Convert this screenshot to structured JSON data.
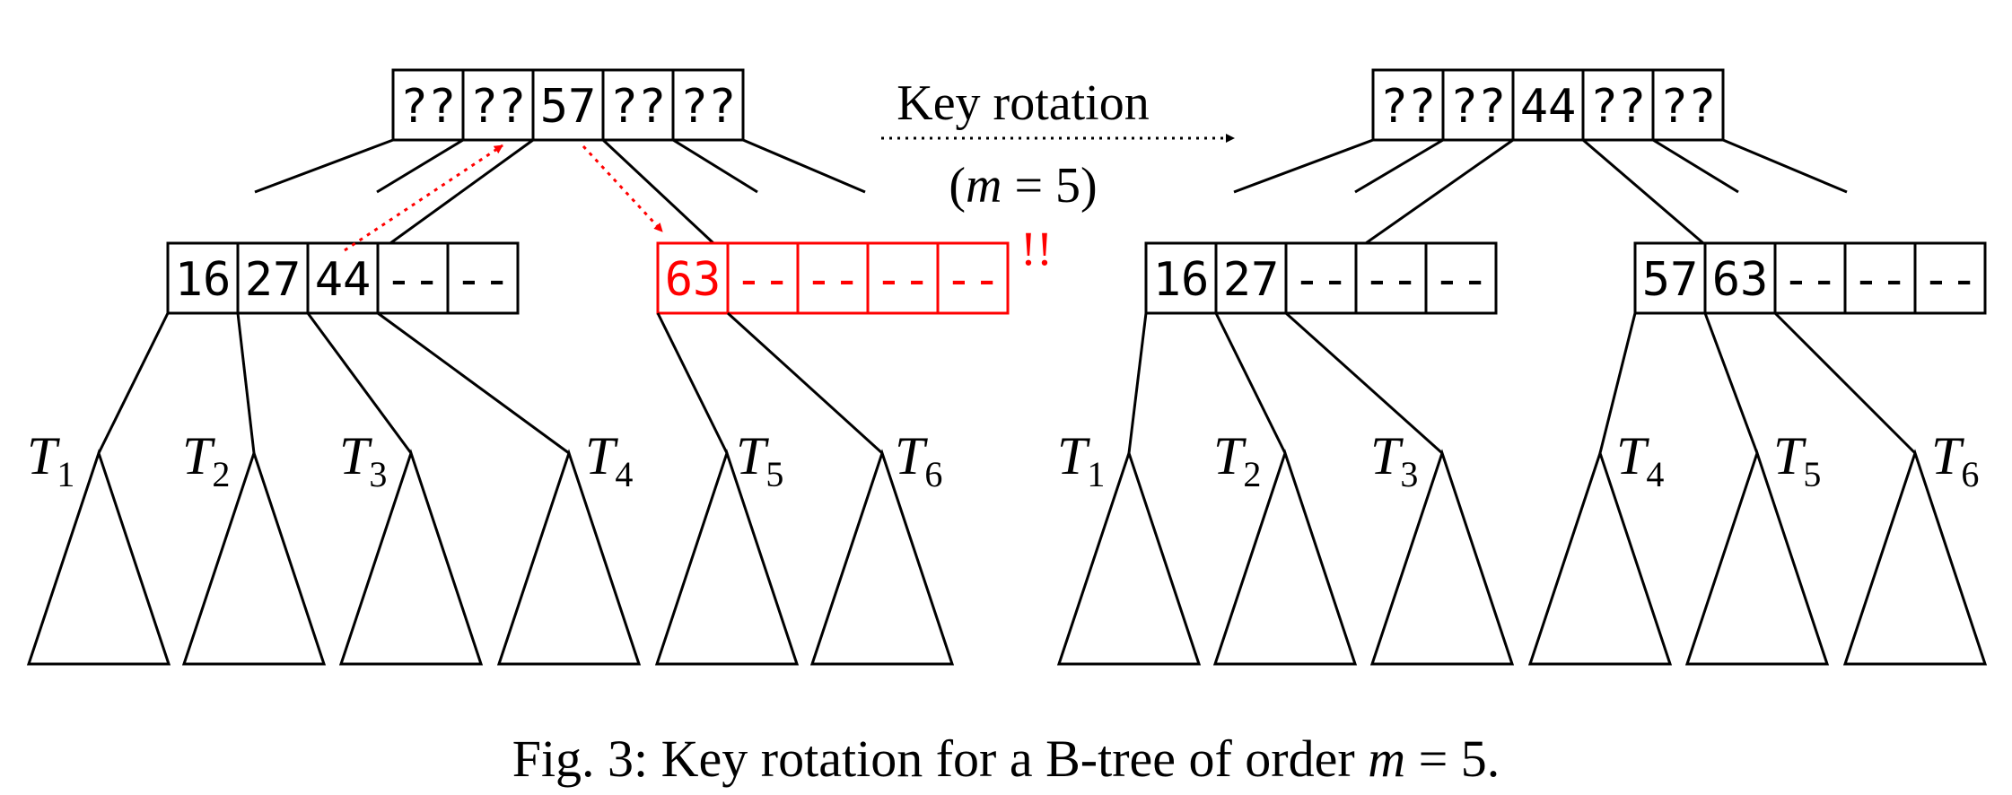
{
  "colors": {
    "ink": "#000000",
    "highlight": "#ff0000",
    "background": "#ffffff"
  },
  "left_tree": {
    "root": {
      "keys": [
        "??",
        "??",
        "57",
        "??",
        "??"
      ]
    },
    "left_child": {
      "keys": [
        "16",
        "27",
        "44",
        "--",
        "--"
      ]
    },
    "right_child": {
      "keys": [
        "63",
        "--",
        "--",
        "--",
        "--"
      ],
      "highlighted": true
    },
    "subtrees": [
      {
        "base": "T",
        "sub": "1"
      },
      {
        "base": "T",
        "sub": "2"
      },
      {
        "base": "T",
        "sub": "3"
      },
      {
        "base": "T",
        "sub": "4"
      },
      {
        "base": "T",
        "sub": "5"
      },
      {
        "base": "T",
        "sub": "6"
      }
    ],
    "warning": "!!"
  },
  "right_tree": {
    "root": {
      "keys": [
        "??",
        "??",
        "44",
        "??",
        "??"
      ]
    },
    "left_child": {
      "keys": [
        "16",
        "27",
        "--",
        "--",
        "--"
      ]
    },
    "right_child": {
      "keys": [
        "57",
        "63",
        "--",
        "--",
        "--"
      ]
    },
    "subtrees": [
      {
        "base": "T",
        "sub": "1"
      },
      {
        "base": "T",
        "sub": "2"
      },
      {
        "base": "T",
        "sub": "3"
      },
      {
        "base": "T",
        "sub": "4"
      },
      {
        "base": "T",
        "sub": "5"
      },
      {
        "base": "T",
        "sub": "6"
      }
    ]
  },
  "transition": {
    "label": "Key rotation",
    "param_open": "(",
    "param_var": "m",
    "param_eq": " = 5)"
  },
  "caption": {
    "text": "Fig. 3: Key rotation for a B-tree of order ",
    "var": "m",
    "tail": " = 5."
  }
}
